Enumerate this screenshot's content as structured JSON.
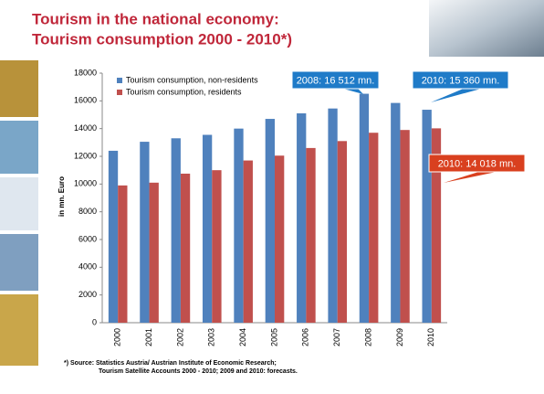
{
  "chart_data": {
    "type": "bar",
    "title": [
      "Tourism in the national economy:",
      "Tourism consumption 2000 - 2010*)"
    ],
    "y_label": "in mn. Euro",
    "categories": [
      "2000",
      "2001",
      "2002",
      "2003",
      "2004",
      "2005",
      "2006",
      "2007",
      "2008",
      "2009",
      "2010"
    ],
    "series": [
      {
        "name": "Tourism consumption, non-residents",
        "color": "#4f81bd",
        "values": [
          12400,
          13050,
          13300,
          13550,
          14000,
          14700,
          15100,
          15450,
          16512,
          15850,
          15360
        ]
      },
      {
        "name": "Tourism consumption, residents",
        "color": "#c0504d",
        "values": [
          9900,
          10100,
          10750,
          11000,
          11700,
          12050,
          12600,
          13100,
          13700,
          13900,
          14018
        ]
      }
    ],
    "ylim": [
      0,
      18000
    ],
    "yticks": [
      0,
      2000,
      4000,
      6000,
      8000,
      10000,
      12000,
      14000,
      16000,
      18000
    ],
    "legend": "top-left",
    "annotations": [
      {
        "text": "2008: 16 512 mn.",
        "color": "#1f7bc8"
      },
      {
        "text": "2010: 15 360 mn.",
        "color": "#1f7bc8"
      },
      {
        "text": "2010: 14 018 mn.",
        "color": "#d9401f"
      }
    ],
    "footnote": [
      "*) Source: Statistics Austria/ Austrian Institute of Economic Research;",
      "Tourism Satellite Accounts 2000 - 2010; 2009 and 2010: forecasts."
    ]
  }
}
